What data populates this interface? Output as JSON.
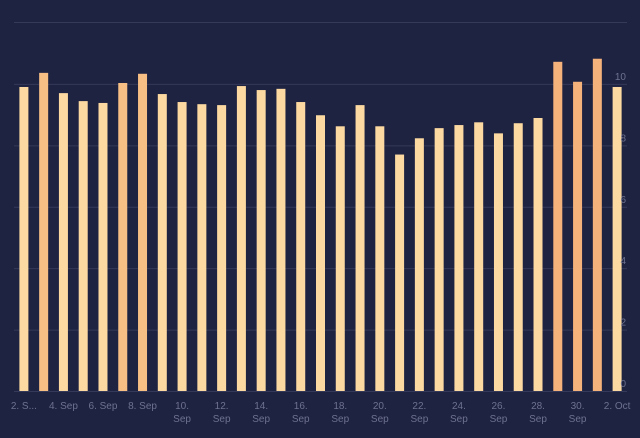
{
  "chart_data": {
    "type": "bar",
    "categories": [
      "2. S...",
      null,
      "4. Sep",
      null,
      "6. Sep",
      null,
      "8. Sep",
      null,
      "10. Sep",
      null,
      "12. Sep",
      null,
      "14. Sep",
      null,
      "16. Sep",
      null,
      "18. Sep",
      null,
      "20. Sep",
      null,
      "22. Sep",
      null,
      "24. Sep",
      null,
      "26. Sep",
      null,
      "28. Sep",
      null,
      "30. Sep",
      null,
      "2. Oct"
    ],
    "values": [
      9.9,
      10.36,
      9.7,
      9.44,
      9.38,
      10.03,
      10.33,
      9.67,
      9.41,
      9.34,
      9.31,
      9.93,
      9.8,
      9.84,
      9.41,
      8.98,
      8.62,
      9.31,
      8.62,
      7.7,
      8.23,
      8.56,
      8.66,
      8.75,
      8.39,
      8.72,
      8.89,
      10.72,
      10.07,
      10.82,
      9.9
    ],
    "colors": [
      "#fcd9a0",
      "#f8bf85",
      "#fcd9a0",
      "#fcd9a0",
      "#fcd9a0",
      "#f8bf85",
      "#f8bf85",
      "#fcd9a0",
      "#fcd9a0",
      "#fcd9a0",
      "#fcd9a0",
      "#fcd9a0",
      "#fcd9a0",
      "#fcd9a0",
      "#fcd9a0",
      "#fcd9a0",
      "#fcd9a0",
      "#fcd9a0",
      "#fcd9a0",
      "#fcd9a0",
      "#fcd9a0",
      "#fcd9a0",
      "#fcd9a0",
      "#fcd9a0",
      "#fcd9a0",
      "#fcd9a0",
      "#fcd9a0",
      "#f5b27a",
      "#f5b27a",
      "#f5b27a",
      "#fcd9a0"
    ],
    "ylim": [
      0,
      12
    ],
    "yticks": [
      0,
      2,
      4,
      6,
      8,
      10
    ],
    "grid": true
  }
}
